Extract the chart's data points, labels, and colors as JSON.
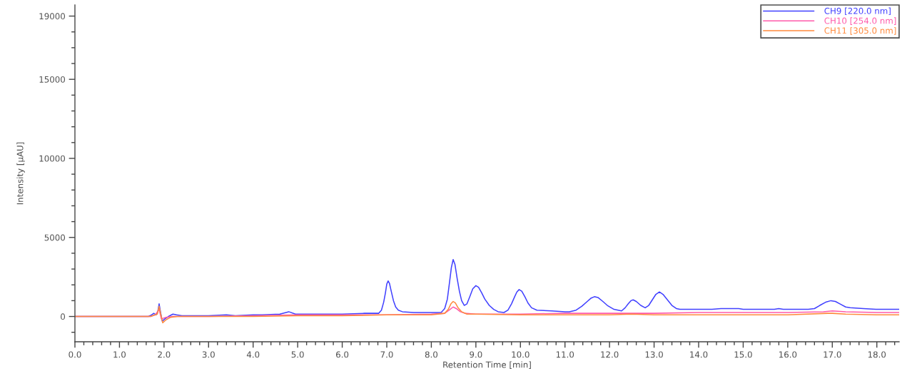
{
  "chart_data": {
    "type": "line",
    "xlabel": "Retention Time [min]",
    "ylabel": "Intensity [µAU]",
    "xlim": [
      0,
      18.5
    ],
    "ylim": [
      -1600,
      19700
    ],
    "xticks": [
      {
        "value": 0,
        "label": "0.0"
      },
      {
        "value": 0.2,
        "label": null
      },
      {
        "value": 0.4,
        "label": null
      },
      {
        "value": 0.6,
        "label": null
      },
      {
        "value": 0.8,
        "label": null
      },
      {
        "value": 1,
        "label": "1.0"
      },
      {
        "value": 1.2,
        "label": null
      },
      {
        "value": 1.4,
        "label": null
      },
      {
        "value": 1.6,
        "label": null
      },
      {
        "value": 1.8,
        "label": null
      },
      {
        "value": 2,
        "label": "2.0"
      },
      {
        "value": 2.2,
        "label": null
      },
      {
        "value": 2.4,
        "label": null
      },
      {
        "value": 2.6,
        "label": null
      },
      {
        "value": 2.8,
        "label": null
      },
      {
        "value": 3,
        "label": "3.0"
      },
      {
        "value": 3.2,
        "label": null
      },
      {
        "value": 3.4,
        "label": null
      },
      {
        "value": 3.6,
        "label": null
      },
      {
        "value": 3.8,
        "label": null
      },
      {
        "value": 4,
        "label": "4.0"
      },
      {
        "value": 4.2,
        "label": null
      },
      {
        "value": 4.4,
        "label": null
      },
      {
        "value": 4.6,
        "label": null
      },
      {
        "value": 4.8,
        "label": null
      },
      {
        "value": 5,
        "label": "5.0"
      },
      {
        "value": 5.2,
        "label": null
      },
      {
        "value": 5.4,
        "label": null
      },
      {
        "value": 5.6,
        "label": null
      },
      {
        "value": 5.8,
        "label": null
      },
      {
        "value": 6,
        "label": "6.0"
      },
      {
        "value": 6.2,
        "label": null
      },
      {
        "value": 6.4,
        "label": null
      },
      {
        "value": 6.6,
        "label": null
      },
      {
        "value": 6.8,
        "label": null
      },
      {
        "value": 7,
        "label": "7.0"
      },
      {
        "value": 7.2,
        "label": null
      },
      {
        "value": 7.4,
        "label": null
      },
      {
        "value": 7.6,
        "label": null
      },
      {
        "value": 7.8,
        "label": null
      },
      {
        "value": 8,
        "label": "8.0"
      },
      {
        "value": 8.2,
        "label": null
      },
      {
        "value": 8.4,
        "label": null
      },
      {
        "value": 8.6,
        "label": null
      },
      {
        "value": 8.8,
        "label": null
      },
      {
        "value": 9,
        "label": "9.0"
      },
      {
        "value": 9.2,
        "label": null
      },
      {
        "value": 9.4,
        "label": null
      },
      {
        "value": 9.6,
        "label": null
      },
      {
        "value": 9.8,
        "label": null
      },
      {
        "value": 10,
        "label": "10.0"
      },
      {
        "value": 10.2,
        "label": null
      },
      {
        "value": 10.4,
        "label": null
      },
      {
        "value": 10.6,
        "label": null
      },
      {
        "value": 10.8,
        "label": null
      },
      {
        "value": 11,
        "label": "11.0"
      },
      {
        "value": 11.2,
        "label": null
      },
      {
        "value": 11.4,
        "label": null
      },
      {
        "value": 11.6,
        "label": null
      },
      {
        "value": 11.8,
        "label": null
      },
      {
        "value": 12,
        "label": "12.0"
      },
      {
        "value": 12.2,
        "label": null
      },
      {
        "value": 12.4,
        "label": null
      },
      {
        "value": 12.6,
        "label": null
      },
      {
        "value": 12.8,
        "label": null
      },
      {
        "value": 13,
        "label": "13.0"
      },
      {
        "value": 13.2,
        "label": null
      },
      {
        "value": 13.4,
        "label": null
      },
      {
        "value": 13.6,
        "label": null
      },
      {
        "value": 13.8,
        "label": null
      },
      {
        "value": 14,
        "label": "14.0"
      },
      {
        "value": 14.2,
        "label": null
      },
      {
        "value": 14.4,
        "label": null
      },
      {
        "value": 14.6,
        "label": null
      },
      {
        "value": 14.8,
        "label": null
      },
      {
        "value": 15,
        "label": "15.0"
      },
      {
        "value": 15.2,
        "label": null
      },
      {
        "value": 15.4,
        "label": null
      },
      {
        "value": 15.6,
        "label": null
      },
      {
        "value": 15.8,
        "label": null
      },
      {
        "value": 16,
        "label": "16.0"
      },
      {
        "value": 16.2,
        "label": null
      },
      {
        "value": 16.4,
        "label": null
      },
      {
        "value": 16.6,
        "label": null
      },
      {
        "value": 16.8,
        "label": null
      },
      {
        "value": 17,
        "label": "17.0"
      },
      {
        "value": 17.2,
        "label": null
      },
      {
        "value": 17.4,
        "label": null
      },
      {
        "value": 17.6,
        "label": null
      },
      {
        "value": 17.8,
        "label": null
      },
      {
        "value": 18,
        "label": "18.0"
      },
      {
        "value": 18.2,
        "label": null
      },
      {
        "value": 18.4,
        "label": null
      }
    ],
    "yticks": [
      {
        "value": -1000,
        "label": null
      },
      0,
      {
        "value": 1000,
        "label": null
      },
      {
        "value": 2000,
        "label": null
      },
      {
        "value": 3000,
        "label": null
      },
      {
        "value": 4000,
        "label": null
      },
      5000,
      {
        "value": 6000,
        "label": null
      },
      {
        "value": 7000,
        "label": null
      },
      {
        "value": 8000,
        "label": null
      },
      {
        "value": 9000,
        "label": null
      },
      10000,
      {
        "value": 11000,
        "label": null
      },
      {
        "value": 12000,
        "label": null
      },
      {
        "value": 13000,
        "label": null
      },
      {
        "value": 14000,
        "label": null
      },
      15000,
      {
        "value": 16000,
        "label": null
      },
      {
        "value": 17000,
        "label": null
      },
      {
        "value": 18000,
        "label": null
      },
      19000
    ],
    "legend": "top right",
    "series": [
      {
        "name": "CH9 [220.0 nm]",
        "color": "#4040ff",
        "x": [
          0,
          1.65,
          1.72,
          1.77,
          1.82,
          1.86,
          1.89,
          1.92,
          1.96,
          2.02,
          2.1,
          2.2,
          2.28,
          2.4,
          3.0,
          3.4,
          3.6,
          4.0,
          4.2,
          4.6,
          4.8,
          4.95,
          5.5,
          6.0,
          6.5,
          6.82,
          6.88,
          6.93,
          6.97,
          7.0,
          7.03,
          7.06,
          7.1,
          7.15,
          7.2,
          7.26,
          7.35,
          7.6,
          8.0,
          8.22,
          8.3,
          8.36,
          8.41,
          8.45,
          8.49,
          8.53,
          8.58,
          8.63,
          8.68,
          8.74,
          8.8,
          8.87,
          8.93,
          9.0,
          9.06,
          9.13,
          9.2,
          9.3,
          9.4,
          9.5,
          9.63,
          9.72,
          9.8,
          9.87,
          9.92,
          9.97,
          10.03,
          10.1,
          10.17,
          10.25,
          10.37,
          10.7,
          11.0,
          11.1,
          11.25,
          11.38,
          11.5,
          11.58,
          11.66,
          11.74,
          11.85,
          11.95,
          12.1,
          12.27,
          12.35,
          12.42,
          12.48,
          12.53,
          12.6,
          12.7,
          12.8,
          12.88,
          12.96,
          13.04,
          13.12,
          13.2,
          13.3,
          13.4,
          13.5,
          13.58,
          14.3,
          14.5,
          14.9,
          15.0,
          15.7,
          15.8,
          15.9,
          16.46,
          16.6,
          16.72,
          16.85,
          16.97,
          17.07,
          17.2,
          17.3,
          17.4,
          17.7,
          17.98,
          18.5
        ],
        "values": [
          0,
          0,
          100,
          200,
          100,
          300,
          800,
          300,
          -300,
          -150,
          0,
          150,
          100,
          50,
          50,
          100,
          50,
          100,
          100,
          150,
          300,
          150,
          150,
          150,
          200,
          200,
          400,
          900,
          1500,
          2050,
          2250,
          2100,
          1600,
          1000,
          600,
          400,
          300,
          250,
          250,
          250,
          500,
          1100,
          2200,
          3100,
          3600,
          3300,
          2400,
          1600,
          1000,
          700,
          800,
          1300,
          1750,
          1950,
          1850,
          1500,
          1100,
          700,
          450,
          300,
          250,
          400,
          800,
          1250,
          1550,
          1700,
          1600,
          1250,
          850,
          550,
          400,
          350,
          300,
          300,
          400,
          650,
          950,
          1150,
          1250,
          1200,
          950,
          700,
          450,
          350,
          550,
          800,
          1000,
          1050,
          950,
          700,
          550,
          700,
          1050,
          1400,
          1550,
          1400,
          1050,
          700,
          500,
          450,
          450,
          500,
          500,
          450,
          450,
          500,
          450,
          450,
          500,
          700,
          900,
          1000,
          950,
          750,
          600,
          550,
          500,
          450,
          450
        ]
      },
      {
        "name": "CH10 [254.0 nm]",
        "color": "#ff5aaa",
        "x": [
          0,
          1.7,
          1.8,
          1.89,
          1.94,
          2.05,
          2.2,
          3.0,
          4.0,
          5.0,
          6.0,
          7.0,
          8.0,
          8.3,
          8.4,
          8.49,
          8.56,
          8.65,
          8.75,
          9.0,
          10.0,
          11.0,
          12.0,
          12.5,
          13.0,
          14.0,
          15.0,
          16.0,
          16.8,
          17.0,
          17.3,
          18.0,
          18.5
        ],
        "values": [
          0,
          0,
          100,
          450,
          -150,
          -50,
          0,
          0,
          50,
          100,
          100,
          100,
          150,
          200,
          400,
          600,
          500,
          300,
          200,
          150,
          150,
          200,
          200,
          200,
          200,
          250,
          250,
          250,
          300,
          350,
          300,
          250,
          250
        ]
      },
      {
        "name": "CH11 [305.0 nm]",
        "color": "#ff8a3d",
        "x": [
          0,
          1.7,
          1.8,
          1.85,
          1.89,
          1.93,
          1.97,
          2.05,
          2.15,
          2.3,
          3.0,
          4.0,
          5.0,
          6.0,
          7.0,
          8.0,
          8.3,
          8.38,
          8.44,
          8.49,
          8.54,
          8.6,
          8.68,
          8.8,
          9.0,
          10.0,
          11.0,
          12.0,
          12.5,
          13.0,
          13.5,
          14.0,
          15.0,
          16.0,
          16.9,
          17.0,
          17.3,
          18.0,
          18.5
        ],
        "values": [
          0,
          0,
          100,
          150,
          650,
          100,
          -400,
          -200,
          -50,
          0,
          0,
          0,
          50,
          50,
          100,
          100,
          200,
          450,
          800,
          950,
          850,
          550,
          300,
          150,
          150,
          100,
          100,
          100,
          150,
          100,
          100,
          100,
          100,
          100,
          200,
          200,
          150,
          100,
          100
        ]
      }
    ]
  }
}
